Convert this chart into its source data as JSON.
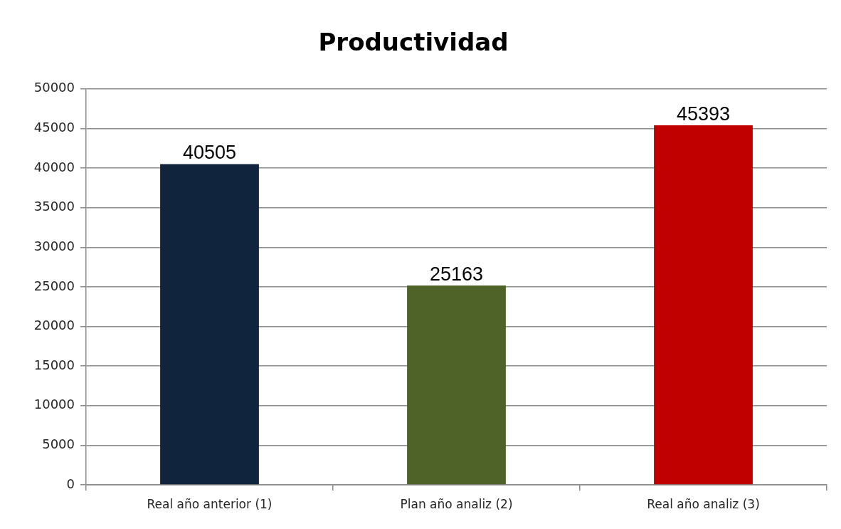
{
  "chart_data": {
    "type": "bar",
    "title": "Productividad",
    "categories": [
      "Real año anterior (1)",
      "Plan año analiz (2)",
      "Real año analiz (3)"
    ],
    "values": [
      40505,
      25163,
      45393
    ],
    "colors": [
      "#10243e",
      "#4f6228",
      "#c00000"
    ],
    "ylim": [
      0,
      50000
    ],
    "yticks": [
      0,
      5000,
      10000,
      15000,
      20000,
      25000,
      30000,
      35000,
      40000,
      45000,
      50000
    ],
    "grid": "y",
    "data_labels": true
  }
}
